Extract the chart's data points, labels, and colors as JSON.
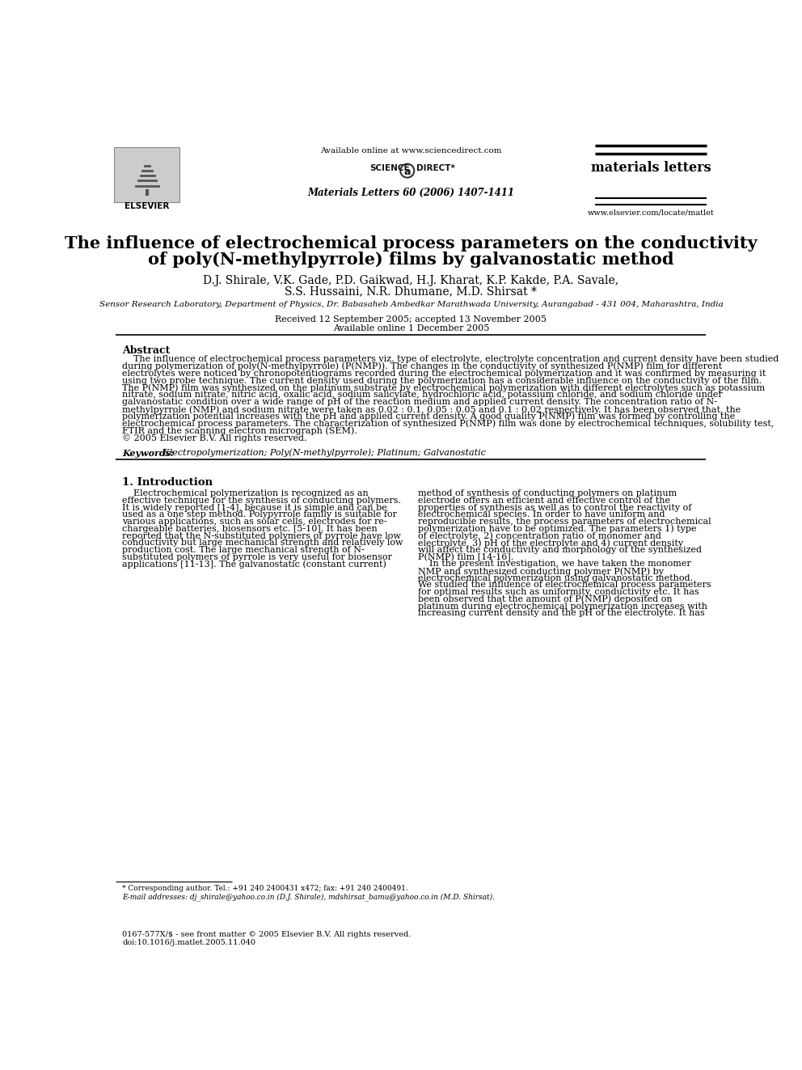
{
  "bg_color": "#ffffff",
  "header_available": "Available online at www.sciencedirect.com",
  "header_science": "SCIENCE",
  "header_direct": "DIRECT",
  "header_journal_name": "materials letters",
  "header_journal_info": "Materials Letters 60 (2006) 1407-1411",
  "header_website": "www.elsevier.com/locate/matlet",
  "elsevier_label": "ELSEVIER",
  "title_line1": "The influence of electrochemical process parameters on the conductivity",
  "title_line2": "of poly(N-methylpyrrole) films by galvanostatic method",
  "authors_line1": "D.J. Shirale, V.K. Gade, P.D. Gaikwad, H.J. Kharat, K.P. Kakde, P.A. Savale,",
  "authors_line2": "S.S. Hussaini, N.R. Dhumane, M.D. Shirsat *",
  "affiliation": "Sensor Research Laboratory, Department of Physics, Dr. Babasaheb Ambedkar Marathwada University, Aurangabad - 431 004, Maharashtra, India",
  "received": "Received 12 September 2005; accepted 13 November 2005",
  "available_online": "Available online 1 December 2005",
  "abstract_title": "Abstract",
  "abstract_para": "    The influence of electrochemical process parameters viz. type of electrolyte, electrolyte concentration and current density have been studied during polymerization of poly(N-methylpyrrole) (P(NMP)). The changes in the conductivity of synthesized P(NMP) film for different electrolytes were noticed by chronopotentiograms recorded during the electrochemical polymerization and it was confirmed by measuring it using two probe technique. The current density used during the polymerization has a considerable influence on the conductivity of the film. The P(NMP) film was synthesized on the platinum substrate by electrochemical polymerization with different electrolytes such as potassium nitrate, sodium nitrate, nitric acid, oxalic acid, sodium salicylate, hydrochloric acid, potassium chloride, and sodium chloride under galvanostatic condition over a wide range of pH of the reaction medium and applied current density. The concentration ratio of N-methylpyrrole (NMP) and sodium nitrate were taken as 0.02 : 0.1, 0.05 : 0.05 and 0.1 : 0.02 respectively. It has been observed that, the polymerization potential increases with the pH and applied current density. A good quality P(NMP) film was formed by controlling the electrochemical process parameters. The characterization of synthesized P(NMP) film was done by electrochemical techniques, solubility test, FTIR and the scanning electron micrograph (SEM).\n© 2005 Elsevier B.V. All rights reserved.",
  "keywords_label": "Keywords:",
  "keywords_text": " Electropolymerization; Poly(N-methylpyrrole); Platinum; Galvanostatic",
  "section1_title": "1. Introduction",
  "intro_left_lines": [
    "    Electrochemical polymerization is recognized as an",
    "effective technique for the synthesis of conducting polymers.",
    "It is widely reported [1-4], because it is simple and can be",
    "used as a one step method. Polypyrrole family is suitable for",
    "various applications, such as solar cells, electrodes for re-",
    "chargeable batteries, biosensors etc. [5-10]. It has been",
    "reported that the N-substituted polymers of pyrrole have low",
    "conductivity but large mechanical strength and relatively low",
    "production cost. The large mechanical strength of N-",
    "substituted polymers of pyrrole is very useful for biosensor",
    "applications [11-13]. The galvanostatic (constant current)"
  ],
  "intro_right_lines": [
    "method of synthesis of conducting polymers on platinum",
    "electrode offers an efficient and effective control of the",
    "properties of synthesis as well as to control the reactivity of",
    "electrochemical species. In order to have uniform and",
    "reproducible results, the process parameters of electrochemical",
    "polymerization have to be optimized. The parameters 1) type",
    "of electrolyte, 2) concentration ratio of monomer and",
    "electrolyte, 3) pH of the electrolyte and 4) current density",
    "will affect the conductivity and morphology of the synthesized",
    "P(NMP) film [14-16].",
    "    In the present investigation, we have taken the monomer",
    "NMP and synthesized conducting polymer P(NMP) by",
    "electrochemical polymerization using galvanostatic method.",
    "We studied the influence of electrochemical process parameters",
    "for optimal results such as uniformity, conductivity etc. It has",
    "been observed that the amount of P(NMP) deposited on",
    "platinum during electrochemical polymerization increases with",
    "increasing current density and the pH of the electrolyte. It has"
  ],
  "footnote_line": "* Corresponding author. Tel.: +91 240 2400431 x472; fax: +91 240 2400491.",
  "footnote_email": "E-mail addresses: dj_shirale@yahoo.co.in (D.J. Shirale), mdshirsat_bamu@yahoo.co.in (M.D. Shirsat).",
  "footer_matter": "0167-577X/$ - see front matter © 2005 Elsevier B.V. All rights reserved.",
  "footer_doi": "doi:10.1016/j.matlet.2005.11.040"
}
